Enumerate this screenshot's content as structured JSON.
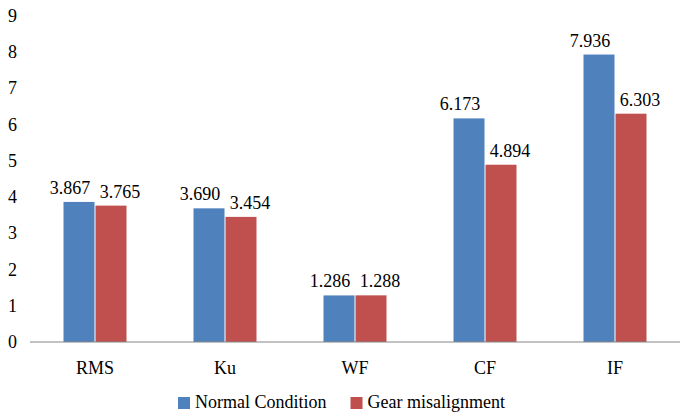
{
  "chart_data": {
    "type": "bar",
    "categories": [
      "RMS",
      "Ku",
      "WF",
      "CF",
      "IF"
    ],
    "series": [
      {
        "name": "Normal Condition",
        "color": "#4f81bd",
        "values": [
          3.867,
          3.69,
          1.286,
          6.173,
          7.936
        ],
        "value_labels": [
          "3.867",
          "3.690",
          "1.286",
          "6.173",
          "7.936"
        ]
      },
      {
        "name": "Gear misalignment",
        "color": "#c0504d",
        "values": [
          3.765,
          3.454,
          1.288,
          4.894,
          6.303
        ]
      }
    ],
    "ylim": [
      0,
      9
    ],
    "yticks": [
      0,
      1,
      2,
      3,
      4,
      5,
      6,
      7,
      8,
      9
    ],
    "grid": false,
    "legend": "bottom",
    "data_labels": true
  }
}
